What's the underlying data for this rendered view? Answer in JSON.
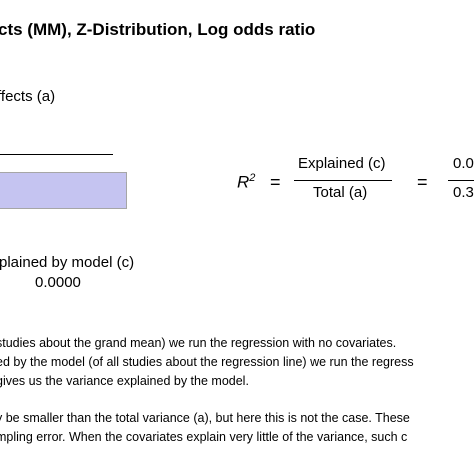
{
  "header": {
    "title": "cts (MM), Z-Distribution, Log odds ratio",
    "subtitle": "ffects (a)"
  },
  "formula": {
    "r2_symbol": "R",
    "r2_superscript": "2",
    "equals": "=",
    "numerator": "Explained (c)",
    "denominator": "Total (a)",
    "value_numerator": "0.0",
    "value_denominator": "0.3"
  },
  "explained": {
    "label": "plained by model (c)",
    "value": "0.0000"
  },
  "notes": [
    "studies about the grand mean) we run the regression with no covariates.",
    "ed by the model (of all studies about the regression line) we run the regress",
    "gives us the variance explained by the model.",
    "y be smaller than the total variance (a), but here this is not the case. These",
    "mpling error. When the covariates explain very little of the variance, such c"
  ],
  "colors": {
    "shaded_fill": "#c5c4f1",
    "shaded_border": "#a6a6a6"
  }
}
